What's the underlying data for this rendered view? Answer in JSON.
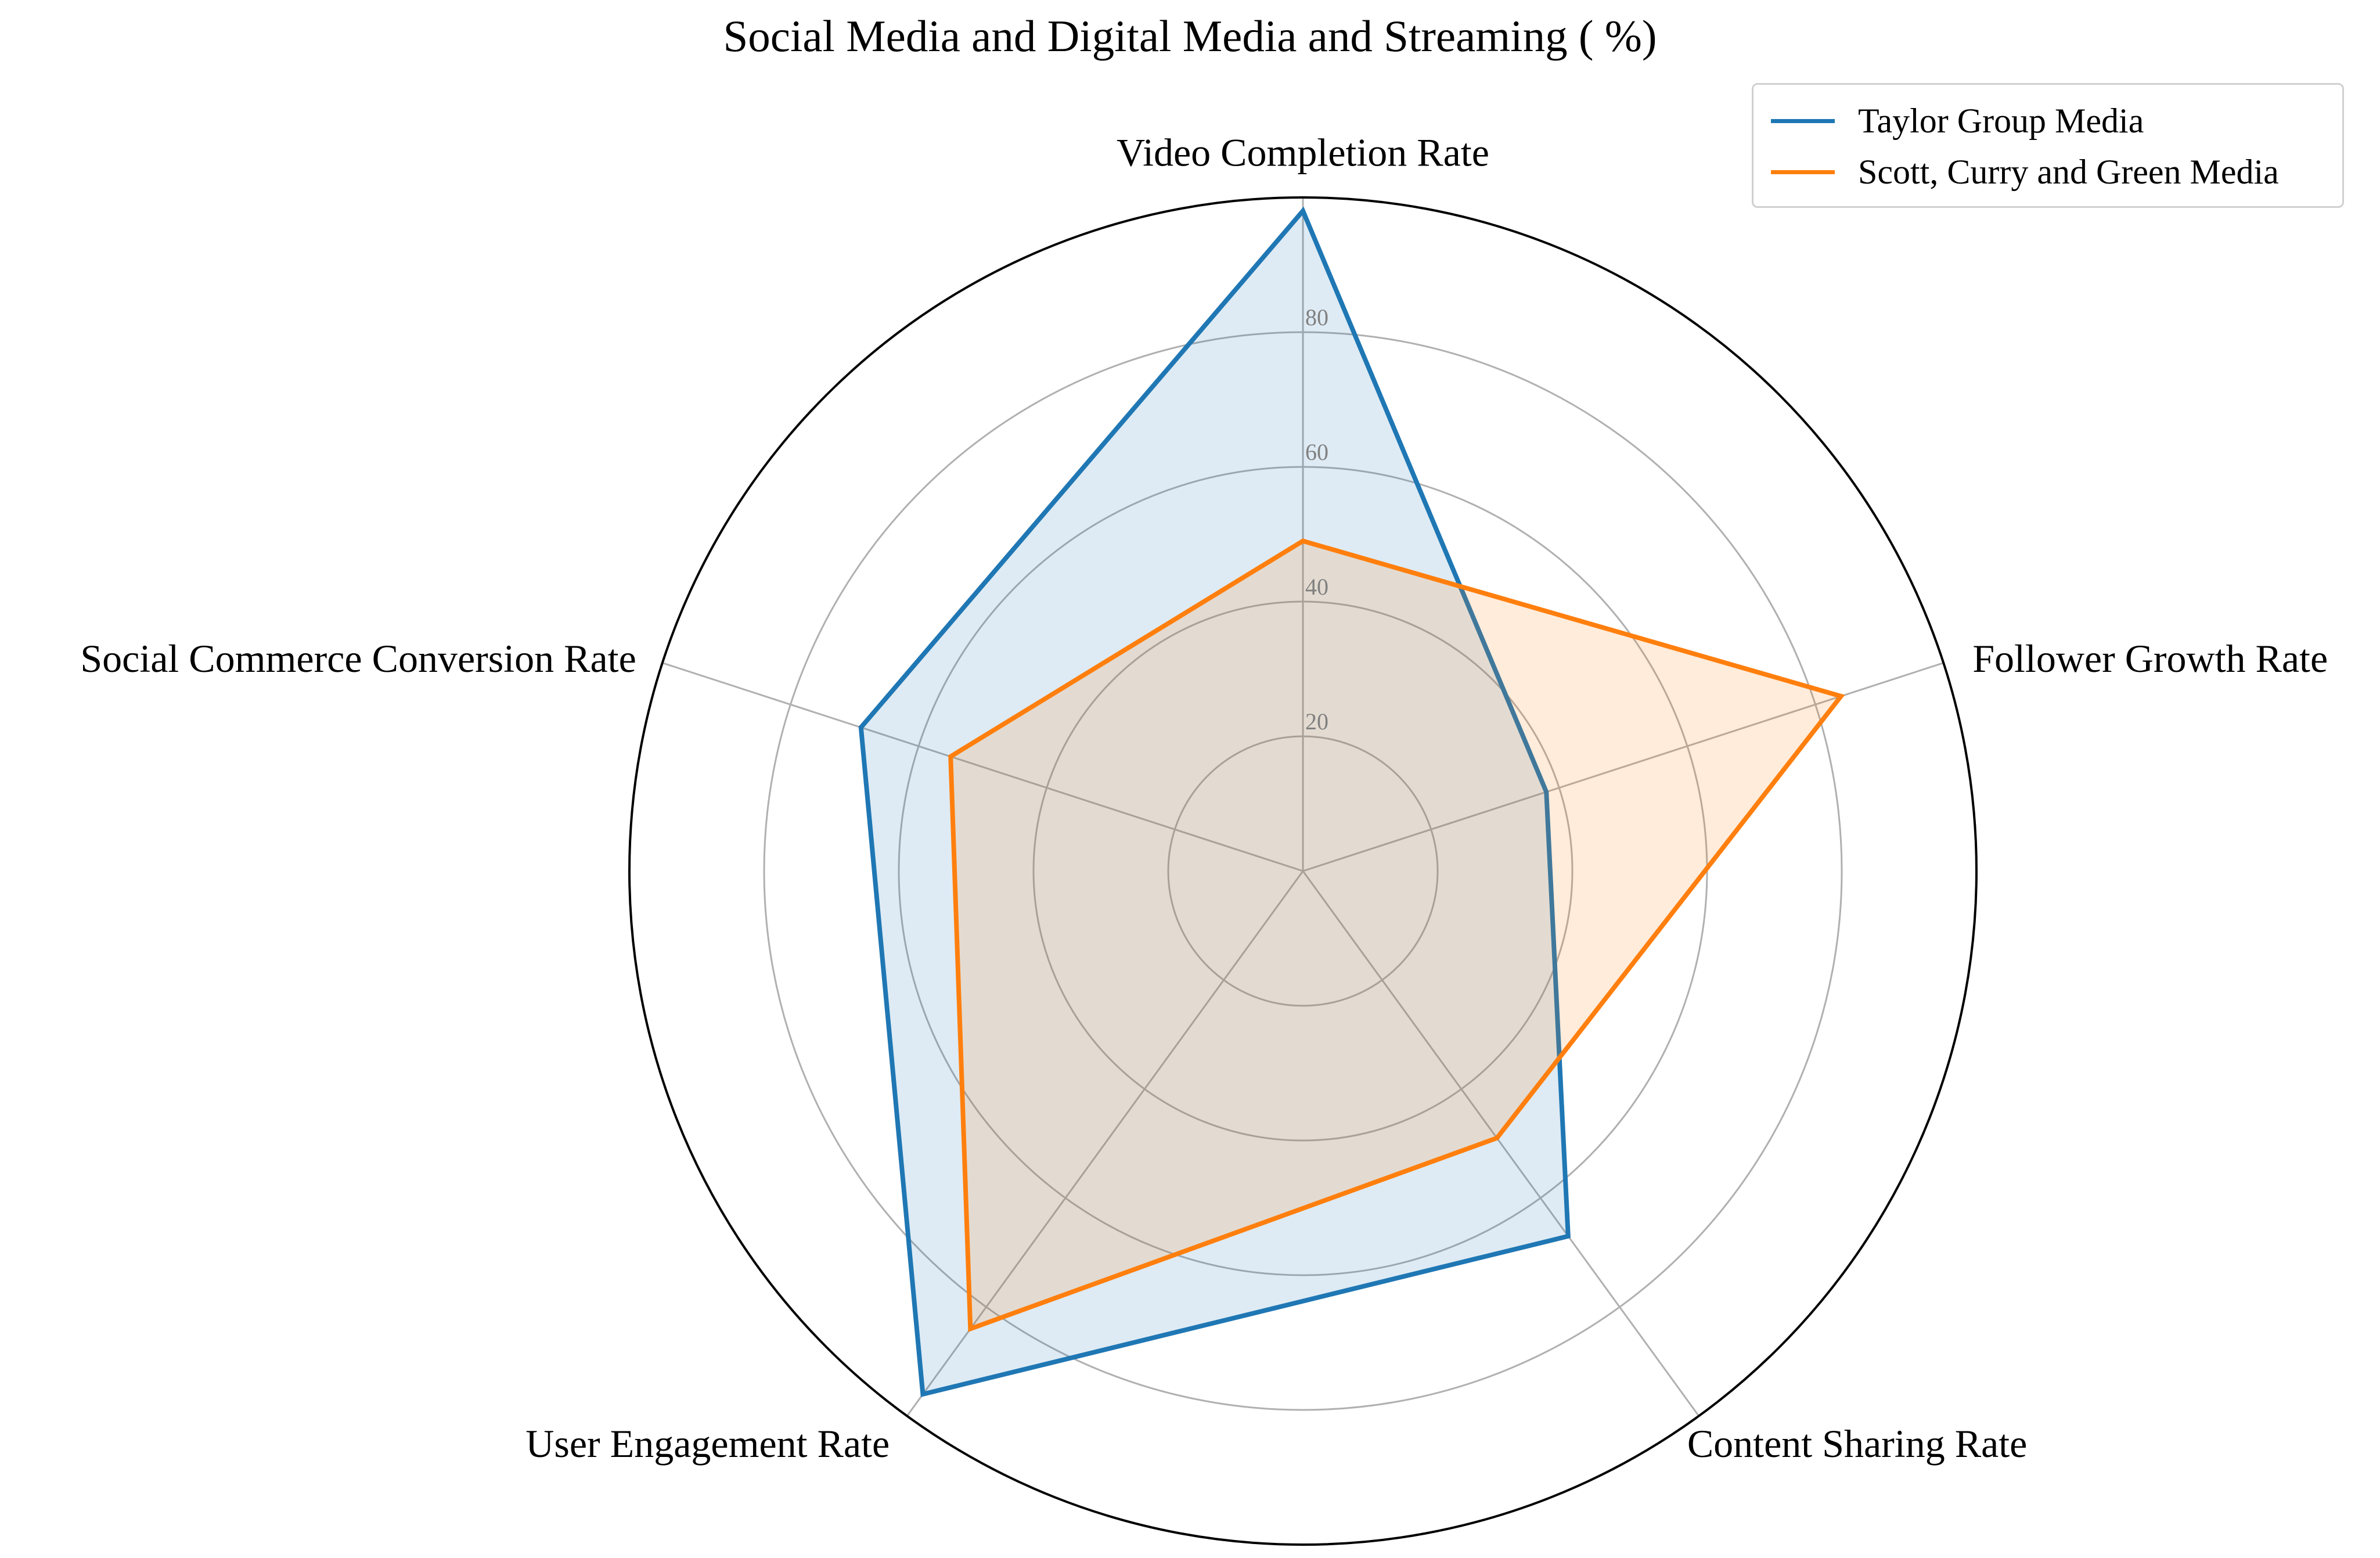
{
  "chart_data": {
    "type": "radar",
    "title": "Social Media and Digital Media and Streaming ( %)",
    "categories": [
      "Video Completion Rate",
      "Follower Growth Rate",
      "Content Sharing Rate",
      "User Engagement Rate",
      "Social Commerce Conversion Rate"
    ],
    "rmax": 100,
    "rticks": [
      20,
      40,
      60,
      80
    ],
    "grid": true,
    "legend_position": "top-right",
    "series": [
      {
        "name": "Taylor Group Media",
        "color": "#1f77b4",
        "values": [
          98,
          38,
          67,
          96,
          69
        ]
      },
      {
        "name": "Scott, Curry and Green Media",
        "color": "#ff7f0e",
        "values": [
          49,
          84,
          49,
          84,
          55
        ]
      }
    ]
  }
}
